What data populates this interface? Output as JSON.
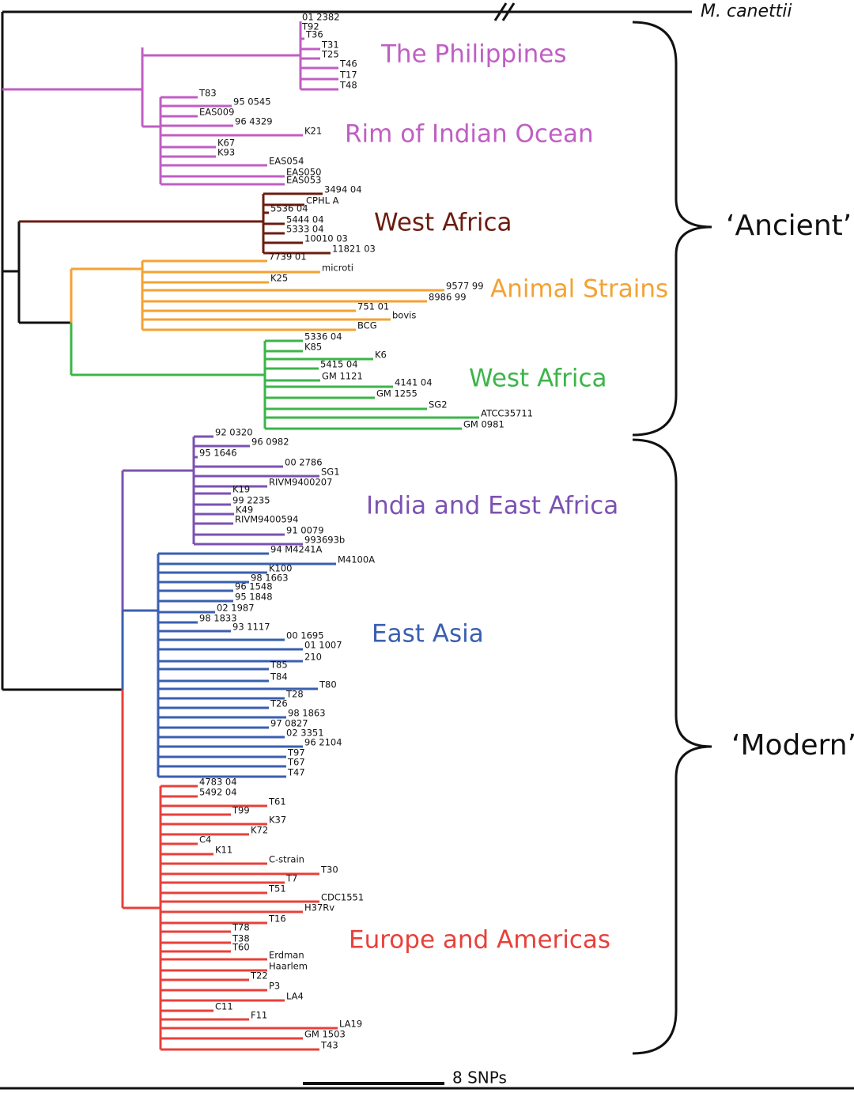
{
  "outgroup": "M. canettii",
  "groups": [
    {
      "label": "The Philippines",
      "color": "#c05ec4",
      "leaves": [
        "01 2382",
        "T92",
        "T36",
        "T31",
        "T25",
        "T46",
        "T17",
        "T48"
      ]
    },
    {
      "label": "Rim of Indian Ocean",
      "color": "#c05ec4",
      "leaves": [
        "T83",
        "95 0545",
        "EAS009",
        "96 4329",
        "K21",
        "K67",
        "K93",
        "EAS054",
        "EAS050",
        "EAS053"
      ]
    },
    {
      "label": "West Africa",
      "color": "#6b1d10",
      "leaves": [
        "3494 04",
        "CPHL A",
        "5536 04",
        "5444 04",
        "5333 04",
        "10010 03",
        "11821 03"
      ]
    },
    {
      "label": "Animal Strains",
      "color": "#f4a233",
      "leaves": [
        "7739 01",
        "microti",
        "K25",
        "9577 99",
        "8986 99",
        "751 01",
        "bovis",
        "BCG"
      ]
    },
    {
      "label": "West Africa",
      "color": "#3cb54a",
      "leaves": [
        "5336 04",
        "K85",
        "K6",
        "5415 04",
        "GM 1121",
        "4141 04",
        "GM 1255",
        "SG2",
        "ATCC35711",
        "GM 0981"
      ]
    },
    {
      "label": "India and East Africa",
      "color": "#7b52b3",
      "leaves": [
        "92 0320",
        "96 0982",
        "95 1646",
        "00 2786",
        "SG1",
        "RIVM9400207",
        "K19",
        "99 2235",
        "K49",
        "RIVM9400594",
        "91 0079",
        "993693b"
      ]
    },
    {
      "label": "East Asia",
      "color": "#3a5fb0",
      "leaves": [
        "94 M4241A",
        "M4100A",
        "K100",
        "98 1663",
        "96 1548",
        "95 1848",
        "02 1987",
        "98 1833",
        "93 1117",
        "00 1695",
        "01 1007",
        "210",
        "T85",
        "T84",
        "T80",
        "T28",
        "T26",
        "98 1863",
        "97 0827",
        "02 3351",
        "96 2104",
        "T97",
        "T67",
        "T47"
      ]
    },
    {
      "label": "Europe and Americas",
      "color": "#e8403a",
      "leaves": [
        "4783 04",
        "5492 04",
        "T61",
        "T99",
        "K37",
        "K72",
        "C4",
        "K11",
        "C-strain",
        "T30",
        "T7",
        "T51",
        "CDC1551",
        "H37Rv",
        "T16",
        "T78",
        "T38",
        "T60",
        "Erdman",
        "Haarlem",
        "T22",
        "P3",
        "LA4",
        "C11",
        "F11",
        "LA19",
        "GM 1503",
        "T43"
      ]
    }
  ],
  "clades": [
    "‘Ancient’",
    "‘Modern’"
  ],
  "scale": "8 SNPs"
}
